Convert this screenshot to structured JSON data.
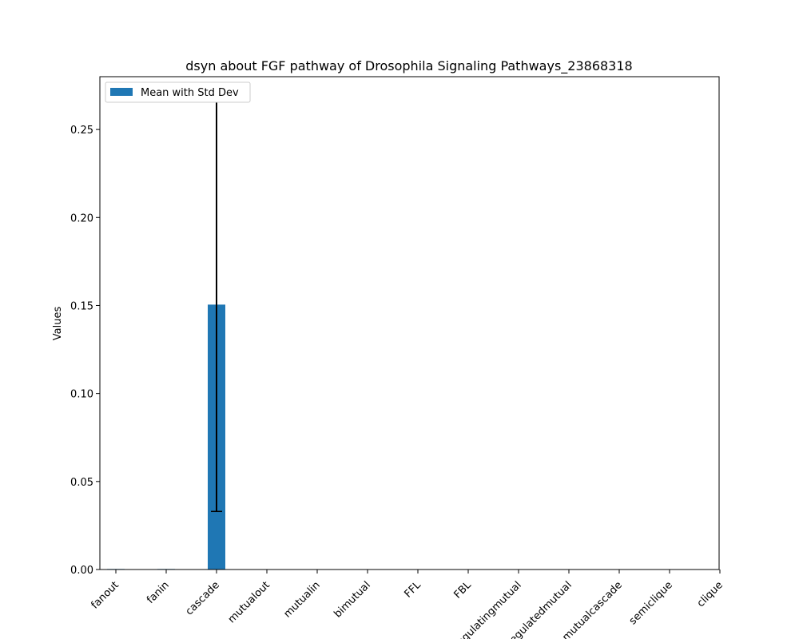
{
  "chart_data": {
    "type": "bar",
    "title": "dsyn about FGF pathway of Drosophila Signaling Pathways_23868318",
    "xlabel": "",
    "ylabel": "Values",
    "categories": [
      "fanout",
      "fanin",
      "cascade",
      "mutualout",
      "mutualin",
      "bimutual",
      "FFL",
      "FBL",
      "regulatingmutual",
      "regulatedmutual",
      "mutualcascade",
      "semiclique",
      "clique"
    ],
    "series": [
      {
        "name": "Mean with Std Dev",
        "values": [
          0.0003,
          0.0003,
          0.1505,
          0,
          0,
          0,
          0,
          0,
          0,
          0,
          0,
          0,
          0
        ],
        "errors": [
          0,
          0,
          0.1175,
          0,
          0,
          0,
          0,
          0,
          0,
          0,
          0,
          0,
          0
        ]
      }
    ],
    "ylim": [
      0,
      0.28
    ],
    "yticks": [
      0.0,
      0.05,
      0.1,
      0.15,
      0.2,
      0.25
    ],
    "ytick_labels": [
      "0.00",
      "0.05",
      "0.10",
      "0.15",
      "0.20",
      "0.25"
    ],
    "grid": false,
    "legend_position": "top-left",
    "colors": {
      "bar": "#1f77b4",
      "errorbar": "#000000",
      "axes": "#000000"
    }
  }
}
